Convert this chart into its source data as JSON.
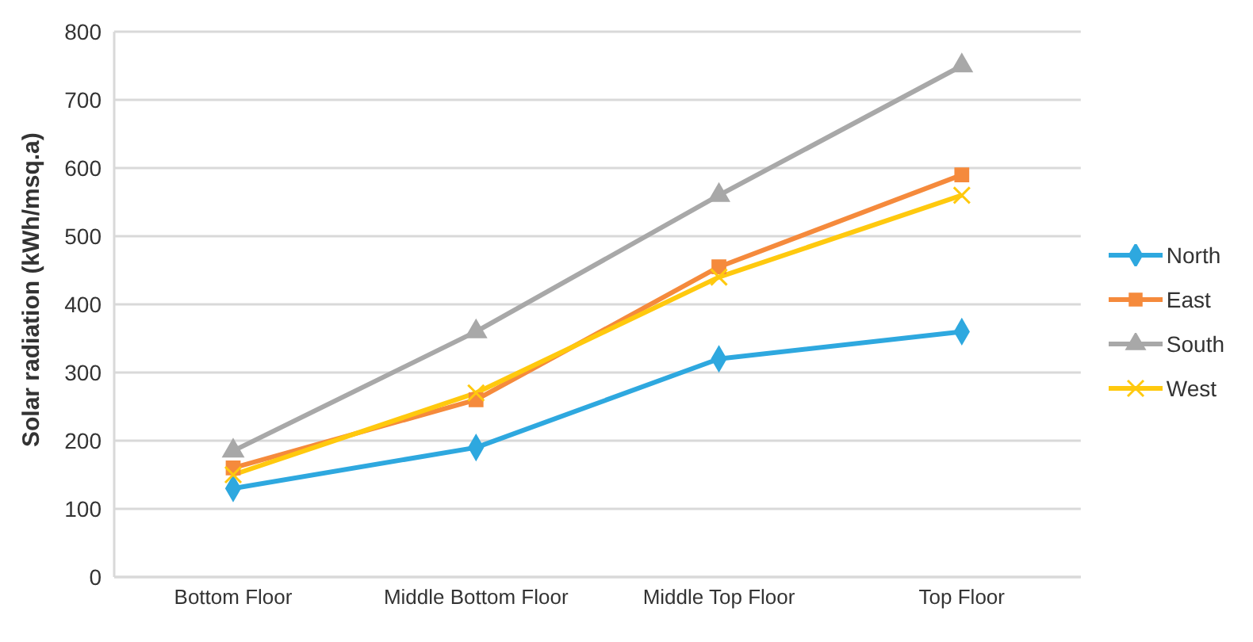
{
  "chart_data": {
    "type": "line",
    "ylabel": "Solar radiation (kWh/msq.a)",
    "categories": [
      "Bottom Floor",
      "Middle Bottom Floor",
      "Middle Top Floor",
      "Top Floor"
    ],
    "series": [
      {
        "name": "North",
        "color": "#2ea8df",
        "marker": "diamond",
        "values": [
          130,
          190,
          320,
          360
        ]
      },
      {
        "name": "East",
        "color": "#f58a3c",
        "marker": "square",
        "values": [
          160,
          260,
          455,
          590
        ]
      },
      {
        "name": "South",
        "color": "#a8a8a8",
        "marker": "triangle",
        "values": [
          185,
          360,
          560,
          750
        ]
      },
      {
        "name": "West",
        "color": "#ffc90e",
        "marker": "cross",
        "values": [
          150,
          270,
          440,
          560
        ]
      }
    ],
    "ylim": [
      0,
      800
    ],
    "yticks": [
      0,
      100,
      200,
      300,
      400,
      500,
      600,
      700,
      800
    ],
    "grid": "y",
    "legend": "right"
  }
}
